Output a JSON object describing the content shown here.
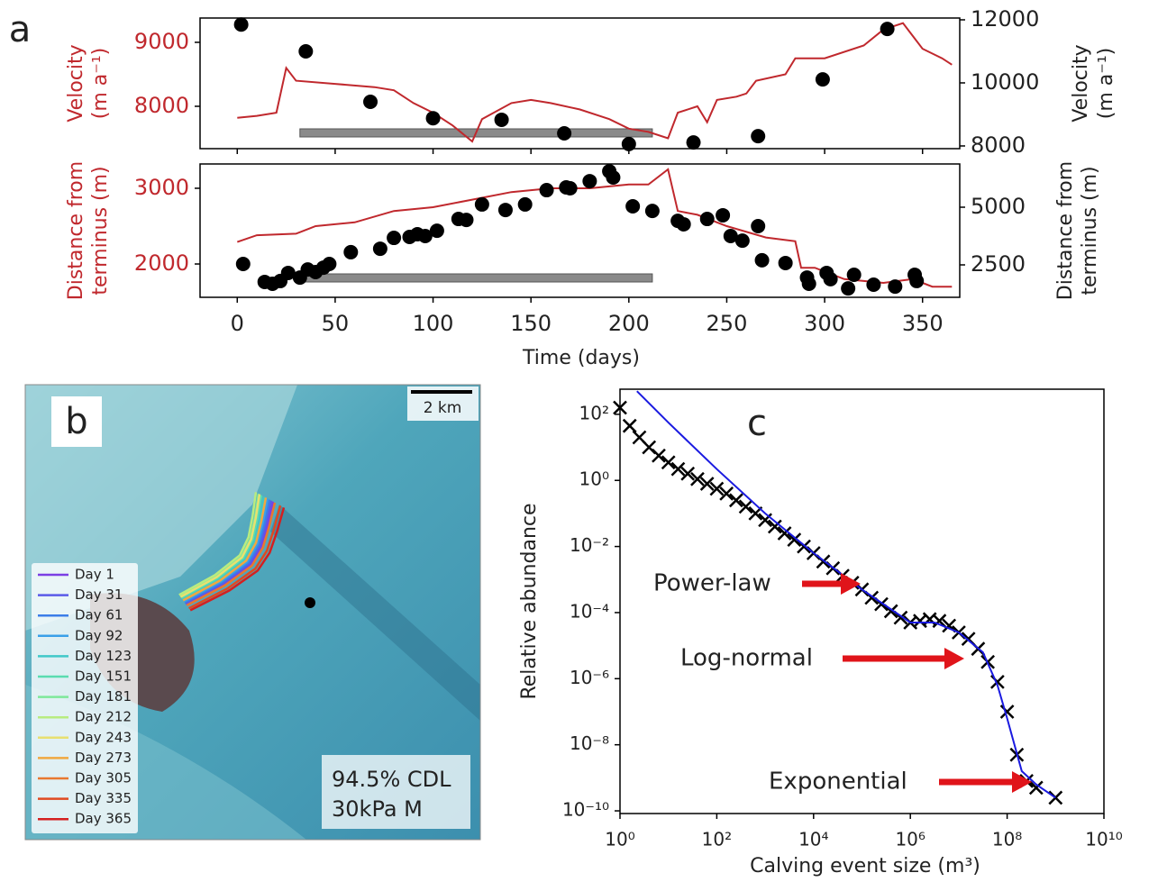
{
  "chart_data": [
    {
      "type": "combo",
      "panel_label": "a",
      "y_label": [
        "Velocity",
        "(m a⁻¹)"
      ],
      "y2_label": [
        "Velocity",
        "(m a⁻¹)"
      ],
      "y_color": "#c0282d",
      "xlim": [
        -19,
        369
      ],
      "xticks": [
        0,
        50,
        100,
        150,
        200,
        250,
        300,
        350
      ],
      "show_xtick_labels": false,
      "ylim": [
        7338,
        9380
      ],
      "yticks": [
        8000,
        9000
      ],
      "y2lim": [
        7914,
        12057
      ],
      "y2ticks": [
        8000,
        10000,
        12000
      ],
      "span": [
        32,
        212
      ],
      "series": [
        {
          "type": "line",
          "color": "#c0282d",
          "x": [
            0,
            10,
            20,
            25,
            30,
            50,
            70,
            80,
            90,
            100,
            110,
            120,
            125,
            140,
            150,
            160,
            175,
            190,
            200,
            210,
            220,
            225,
            235,
            240,
            245,
            255,
            260,
            265,
            280,
            285,
            300,
            320,
            330,
            340,
            350,
            360,
            365
          ],
          "values": [
            7820,
            7850,
            7900,
            8600,
            8400,
            8350,
            8300,
            8250,
            8050,
            7900,
            7700,
            7450,
            7800,
            8050,
            8100,
            8050,
            7950,
            7800,
            7650,
            7600,
            7500,
            7900,
            8000,
            7750,
            8100,
            8150,
            8200,
            8400,
            8500,
            8750,
            8750,
            8950,
            9200,
            9300,
            8900,
            8750,
            8650
          ]
        },
        {
          "type": "scatter",
          "color": "#000000",
          "axis": "y2",
          "x": [
            2,
            35,
            68,
            100,
            135,
            167,
            200,
            233,
            266,
            299,
            332
          ],
          "values": [
            11850,
            11000,
            9400,
            8880,
            8830,
            8400,
            8060,
            8110,
            8310,
            10110,
            11710
          ]
        }
      ]
    },
    {
      "type": "combo",
      "y_label": [
        "Distance from",
        "terminus (m)"
      ],
      "y2_label": [
        "Distance from",
        "terminus (m)"
      ],
      "y_color": "#c0282d",
      "x_label": "Time (days)",
      "xlim": [
        -19,
        369
      ],
      "xticks": [
        0,
        50,
        100,
        150,
        200,
        250,
        300,
        350
      ],
      "show_xtick_labels": true,
      "ylim": [
        1560,
        3321
      ],
      "yticks": [
        2000,
        3000
      ],
      "y2lim": [
        1094,
        6875
      ],
      "y2ticks": [
        2500,
        5000
      ],
      "span": [
        32,
        212
      ],
      "series": [
        {
          "type": "line",
          "color": "#c0282d",
          "x": [
            0,
            10,
            30,
            40,
            60,
            80,
            100,
            120,
            140,
            160,
            180,
            200,
            210,
            220,
            225,
            235,
            250,
            270,
            285,
            288,
            295,
            310,
            330,
            345,
            355,
            365
          ],
          "values": [
            2290,
            2380,
            2400,
            2500,
            2550,
            2700,
            2750,
            2850,
            2950,
            3000,
            3000,
            3050,
            3050,
            3250,
            2700,
            2650,
            2500,
            2350,
            2300,
            1950,
            1950,
            1800,
            1750,
            1800,
            1700,
            1700
          ]
        },
        {
          "type": "scatter",
          "color": "#000000",
          "axis": "y2",
          "x": [
            3,
            14,
            18,
            22,
            26,
            32,
            36,
            40,
            44,
            47,
            58,
            73,
            80,
            88,
            92,
            96,
            102,
            113,
            117,
            125,
            137,
            147,
            158,
            168,
            170,
            180,
            190,
            192,
            202,
            212,
            225,
            228,
            240,
            248,
            252,
            258,
            266,
            268,
            280,
            291,
            292,
            301,
            303,
            312,
            315,
            325,
            336,
            346,
            347
          ],
          "values": [
            2540,
            1760,
            1680,
            1800,
            2150,
            1950,
            2300,
            2190,
            2380,
            2540,
            3050,
            3200,
            3670,
            3710,
            3830,
            3750,
            3980,
            4490,
            4450,
            5120,
            4880,
            5120,
            5740,
            5860,
            5820,
            6130,
            6560,
            6290,
            5040,
            4840,
            4410,
            4260,
            4490,
            4650,
            3750,
            3550,
            4180,
            2700,
            2580,
            1950,
            1680,
            2150,
            1880,
            1480,
            2070,
            1640,
            1560,
            2070,
            1800
          ]
        }
      ]
    },
    {
      "type": "combo",
      "panel_label": "c",
      "x_label": "Calving event size (m³)",
      "y_label": [
        "Relative abundance"
      ],
      "xlog": true,
      "ylog": true,
      "xlim": [
        1,
        10000000000.0
      ],
      "ylim": [
        8.3e-11,
        575
      ],
      "show_xtick_labels": true,
      "xticks": [
        {
          "value": 1,
          "label": "10⁰"
        },
        {
          "value": 100,
          "label": "10²"
        },
        {
          "value": 10000,
          "label": "10⁴"
        },
        {
          "value": 1000000.0,
          "label": "10⁶"
        },
        {
          "value": 100000000.0,
          "label": "10⁸"
        },
        {
          "value": 10000000000.0,
          "label": "10¹⁰"
        }
      ],
      "yticks": [
        {
          "value": 100,
          "label": "10²"
        },
        {
          "value": 1,
          "label": "10⁰"
        },
        {
          "value": 0.01,
          "label": "10⁻²"
        },
        {
          "value": 0.0001,
          "label": "10⁻⁴"
        },
        {
          "value": 1e-06,
          "label": "10⁻⁶"
        },
        {
          "value": 1e-08,
          "label": "10⁻⁸"
        },
        {
          "value": 1e-10,
          "label": "10⁻¹⁰"
        }
      ],
      "annotations": [
        "Power-law",
        "Log-normal",
        "Exponential"
      ],
      "series": [
        {
          "type": "scatter",
          "marker": "x",
          "color": "#000000",
          "x": [
            1,
            1.585,
            2.512,
            3.981,
            6.31,
            10,
            15.85,
            25.12,
            39.81,
            63.1,
            100,
            158.5,
            251.2,
            398.1,
            631,
            1000,
            1585,
            2512,
            3981,
            6310,
            10000.0,
            15850.0,
            25120.0,
            39810.0,
            63100.0,
            100000.0,
            158500.0,
            251200.0,
            398100.0,
            631000.0,
            1000000.0,
            1585000.0,
            2512000.0,
            3981000.0,
            6310000.0,
            10000000.0,
            15850000.0,
            25120000.0,
            39810000.0,
            63100000.0,
            100000000.0,
            158500000.0,
            251200000.0,
            398100000.0,
            1000000000.0
          ],
          "values": [
            158.5,
            44.7,
            20,
            10,
            5.6,
            3.5,
            2.2,
            1.6,
            1.1,
            0.79,
            0.56,
            0.4,
            0.25,
            0.16,
            0.1,
            0.063,
            0.04,
            0.025,
            0.016,
            0.01,
            0.0063,
            0.0035,
            0.0022,
            0.0013,
            0.0008,
            0.0005,
            0.00028,
            0.00018,
            0.00011,
            7e-05,
            5e-05,
            5.6e-05,
            6.3e-05,
            5.6e-05,
            4e-05,
            2.5e-05,
            1.6e-05,
            8e-06,
            3.2e-06,
            8e-07,
            1e-07,
            5e-09,
            8e-10,
            5e-10,
            2.5e-10
          ]
        },
        {
          "type": "line",
          "color": "#1a1ae0",
          "x": [
            2.24,
            10,
            100,
            1000,
            10000.0,
            100000.0,
            1000000.0,
            3160000.0,
            10000000.0,
            31600000.0,
            63100000.0,
            100000000.0,
            200000000.0,
            398000000.0,
            1000000000.0
          ],
          "values": [
            500,
            56,
            2.2,
            0.1,
            0.0063,
            0.0005,
            5e-05,
            5e-05,
            2.5e-05,
            6.3e-06,
            6.3e-07,
            6.3e-08,
            1.6e-09,
            6.3e-10,
            2.5e-10
          ]
        }
      ]
    }
  ],
  "panel_b": {
    "panel_label": "b",
    "scale_bar": "2 km",
    "annotation": [
      "94.5% CDL",
      "30kPa M"
    ],
    "legend": [
      {
        "label": "Day 1",
        "color": "#7b3fe4"
      },
      {
        "label": "Day 31",
        "color": "#5a5ae8"
      },
      {
        "label": "Day 61",
        "color": "#3c7ee8"
      },
      {
        "label": "Day 92",
        "color": "#3aa0e8"
      },
      {
        "label": "Day 123",
        "color": "#40c8c8"
      },
      {
        "label": "Day 151",
        "color": "#5adcb0"
      },
      {
        "label": "Day 181",
        "color": "#7ee89a"
      },
      {
        "label": "Day 212",
        "color": "#b8ec80"
      },
      {
        "label": "Day 243",
        "color": "#e8e070"
      },
      {
        "label": "Day 273",
        "color": "#f0a840"
      },
      {
        "label": "Day 305",
        "color": "#e87830"
      },
      {
        "label": "Day 335",
        "color": "#e04a20"
      },
      {
        "label": "Day 365",
        "color": "#d42020"
      }
    ]
  }
}
